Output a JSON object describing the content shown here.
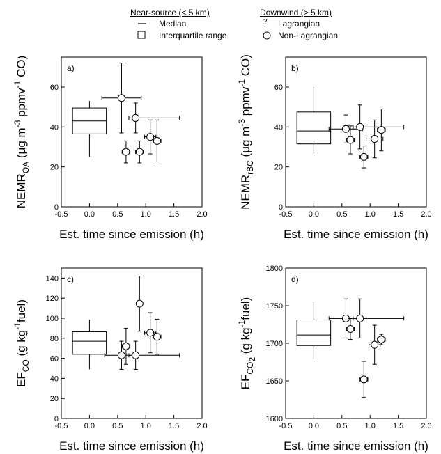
{
  "legend": {
    "near_source": {
      "heading": "Near-source (< 5 km)",
      "items": [
        "Median",
        "Interquartile range"
      ]
    },
    "downwind": {
      "heading": "Downwind (> 5 km)",
      "items": [
        "Lagrangian",
        "Non-Lagrangian"
      ]
    }
  },
  "chart_data": [
    {
      "type": "scatter",
      "panel_label": "a)",
      "ylabel": {
        "main": "NEMR",
        "sub": "OA",
        "rest": " (μg m",
        "sup1": "-3",
        "rest2": " ppmv",
        "sup2": "-1",
        "rest3": " CO)"
      },
      "xlabel": "Est. time since emission (h)",
      "xlim": [
        -0.5,
        2.0
      ],
      "ylim": [
        0,
        75
      ],
      "xticks": [
        "-0.5",
        "0.0",
        "0.5",
        "1.0",
        "1.5",
        "2.0"
      ],
      "yticks": [
        "0",
        "20",
        "40",
        "60"
      ],
      "box": {
        "x": 0.0,
        "q1": 36.5,
        "median": 43,
        "q3": 49.5,
        "whisker_low": 25,
        "whisker_high": 53,
        "x_half_width": 0.3
      },
      "points": [
        {
          "x": 0.57,
          "y": 54.5,
          "xerr": [
            0.35,
            0.35
          ],
          "yerr": [
            17.5,
            17.5
          ]
        },
        {
          "x": 0.82,
          "y": 44.5,
          "xerr": [
            0.12,
            0.78
          ],
          "yerr": [
            7.5,
            7.5
          ]
        },
        {
          "x": 0.65,
          "y": 27.5,
          "xerr": [
            0.07,
            0.07
          ],
          "yerr": [
            5.5,
            5.5
          ]
        },
        {
          "x": 0.89,
          "y": 27.5,
          "xerr": [
            0.07,
            0.07
          ],
          "yerr": [
            5.5,
            5.5
          ]
        },
        {
          "x": 1.08,
          "y": 35,
          "xerr": [
            0.1,
            0.1
          ],
          "yerr": [
            8.5,
            8.5
          ]
        },
        {
          "x": 1.2,
          "y": 33,
          "xerr": [
            0.07,
            0.07
          ],
          "yerr": [
            10.5,
            10.5
          ]
        }
      ]
    },
    {
      "type": "scatter",
      "panel_label": "b)",
      "ylabel": {
        "main": "NEMR",
        "sub": "rBC",
        "rest": " (μg m",
        "sup1": "-3",
        "rest2": " ppmv",
        "sup2": "-1",
        "rest3": " CO)"
      },
      "xlabel": "Est. time since emission (h)",
      "xlim": [
        -0.5,
        2.0
      ],
      "ylim": [
        0,
        75
      ],
      "xticks": [
        "-0.5",
        "0.0",
        "0.5",
        "1.0",
        "1.5",
        "2.0"
      ],
      "yticks": [
        "0",
        "20",
        "40",
        "60"
      ],
      "box": {
        "x": 0.0,
        "q1": 31.5,
        "median": 38,
        "q3": 47.5,
        "whisker_low": 26.5,
        "whisker_high": 60,
        "x_half_width": 0.3
      },
      "points": [
        {
          "x": 0.57,
          "y": 39,
          "xerr": [
            0.3,
            0.3
          ],
          "yerr": [
            7,
            7
          ]
        },
        {
          "x": 0.82,
          "y": 40,
          "xerr": [
            0.12,
            0.78
          ],
          "yerr": [
            11,
            11
          ]
        },
        {
          "x": 0.65,
          "y": 33.5,
          "xerr": [
            0.07,
            0.07
          ],
          "yerr": [
            7,
            7
          ]
        },
        {
          "x": 0.89,
          "y": 25,
          "xerr": [
            0.07,
            0.07
          ],
          "yerr": [
            5.5,
            5.5
          ]
        },
        {
          "x": 1.08,
          "y": 34,
          "xerr": [
            0.15,
            0.15
          ],
          "yerr": [
            9.5,
            9.5
          ]
        },
        {
          "x": 1.2,
          "y": 38.5,
          "xerr": [
            0.07,
            0.07
          ],
          "yerr": [
            10.5,
            10.5
          ]
        }
      ]
    },
    {
      "type": "scatter",
      "panel_label": "c)",
      "ylabel": {
        "main": "EF",
        "sub": "CO",
        "rest": " (g kg",
        "sup1": "-1",
        "rest2": "fuel)",
        "sup2": "",
        "rest3": ""
      },
      "xlabel": "Est. time since emission (h)",
      "xlim": [
        -0.5,
        2.0
      ],
      "ylim": [
        0,
        150
      ],
      "xticks": [
        "-0.5",
        "0.0",
        "0.5",
        "1.0",
        "1.5",
        "2.0"
      ],
      "yticks": [
        "0",
        "20",
        "40",
        "60",
        "80",
        "100",
        "120",
        "140"
      ],
      "box": {
        "x": 0.0,
        "q1": 64,
        "median": 77,
        "q3": 86.5,
        "whisker_low": 49,
        "whisker_high": 98.5,
        "x_half_width": 0.3
      },
      "points": [
        {
          "x": 0.57,
          "y": 63,
          "xerr": [
            0.3,
            0.3
          ],
          "yerr": [
            14,
            14
          ]
        },
        {
          "x": 0.82,
          "y": 63,
          "xerr": [
            0.12,
            0.78
          ],
          "yerr": [
            14,
            14
          ]
        },
        {
          "x": 0.65,
          "y": 72,
          "xerr": [
            0.07,
            0.07
          ],
          "yerr": [
            18,
            18
          ]
        },
        {
          "x": 0.89,
          "y": 114.5,
          "xerr": [
            0.05,
            0.05
          ],
          "yerr": [
            27.5,
            27.5
          ]
        },
        {
          "x": 1.08,
          "y": 85.5,
          "xerr": [
            0.1,
            0.1
          ],
          "yerr": [
            20,
            20
          ]
        },
        {
          "x": 1.2,
          "y": 81.5,
          "xerr": [
            0.07,
            0.07
          ],
          "yerr": [
            17.5,
            17.5
          ]
        }
      ]
    },
    {
      "type": "scatter",
      "panel_label": "d)",
      "ylabel": {
        "main": "EF",
        "sub": "CO",
        "sub2": "2",
        "rest": " (g kg",
        "sup1": "-1",
        "rest2": "fuel)",
        "sup2": "",
        "rest3": ""
      },
      "xlabel": "Est. time since emission (h)",
      "xlim": [
        -0.5,
        2.0
      ],
      "ylim": [
        1600,
        1800
      ],
      "xticks": [
        "-0.5",
        "0.0",
        "0.5",
        "1.0",
        "1.5",
        "2.0"
      ],
      "yticks": [
        "1600",
        "1650",
        "1700",
        "1750",
        "1800"
      ],
      "box": {
        "x": 0.0,
        "q1": 1697,
        "median": 1711,
        "q3": 1731,
        "whisker_low": 1678,
        "whisker_high": 1756,
        "x_half_width": 0.3
      },
      "points": [
        {
          "x": 0.57,
          "y": 1733,
          "xerr": [
            0.3,
            0.3
          ],
          "yerr": [
            26,
            26
          ]
        },
        {
          "x": 0.82,
          "y": 1733,
          "xerr": [
            0.12,
            0.78
          ],
          "yerr": [
            26,
            26
          ]
        },
        {
          "x": 0.65,
          "y": 1719,
          "xerr": [
            0.07,
            0.07
          ],
          "yerr": [
            14,
            14
          ]
        },
        {
          "x": 0.89,
          "y": 1652,
          "xerr": [
            0.07,
            0.07
          ],
          "yerr": [
            24,
            24
          ]
        },
        {
          "x": 1.08,
          "y": 1698,
          "xerr": [
            0.1,
            0.1
          ],
          "yerr": [
            26,
            26
          ]
        },
        {
          "x": 1.2,
          "y": 1705,
          "xerr": [
            0.07,
            0.07
          ],
          "yerr": [
            7,
            7
          ]
        }
      ]
    }
  ]
}
